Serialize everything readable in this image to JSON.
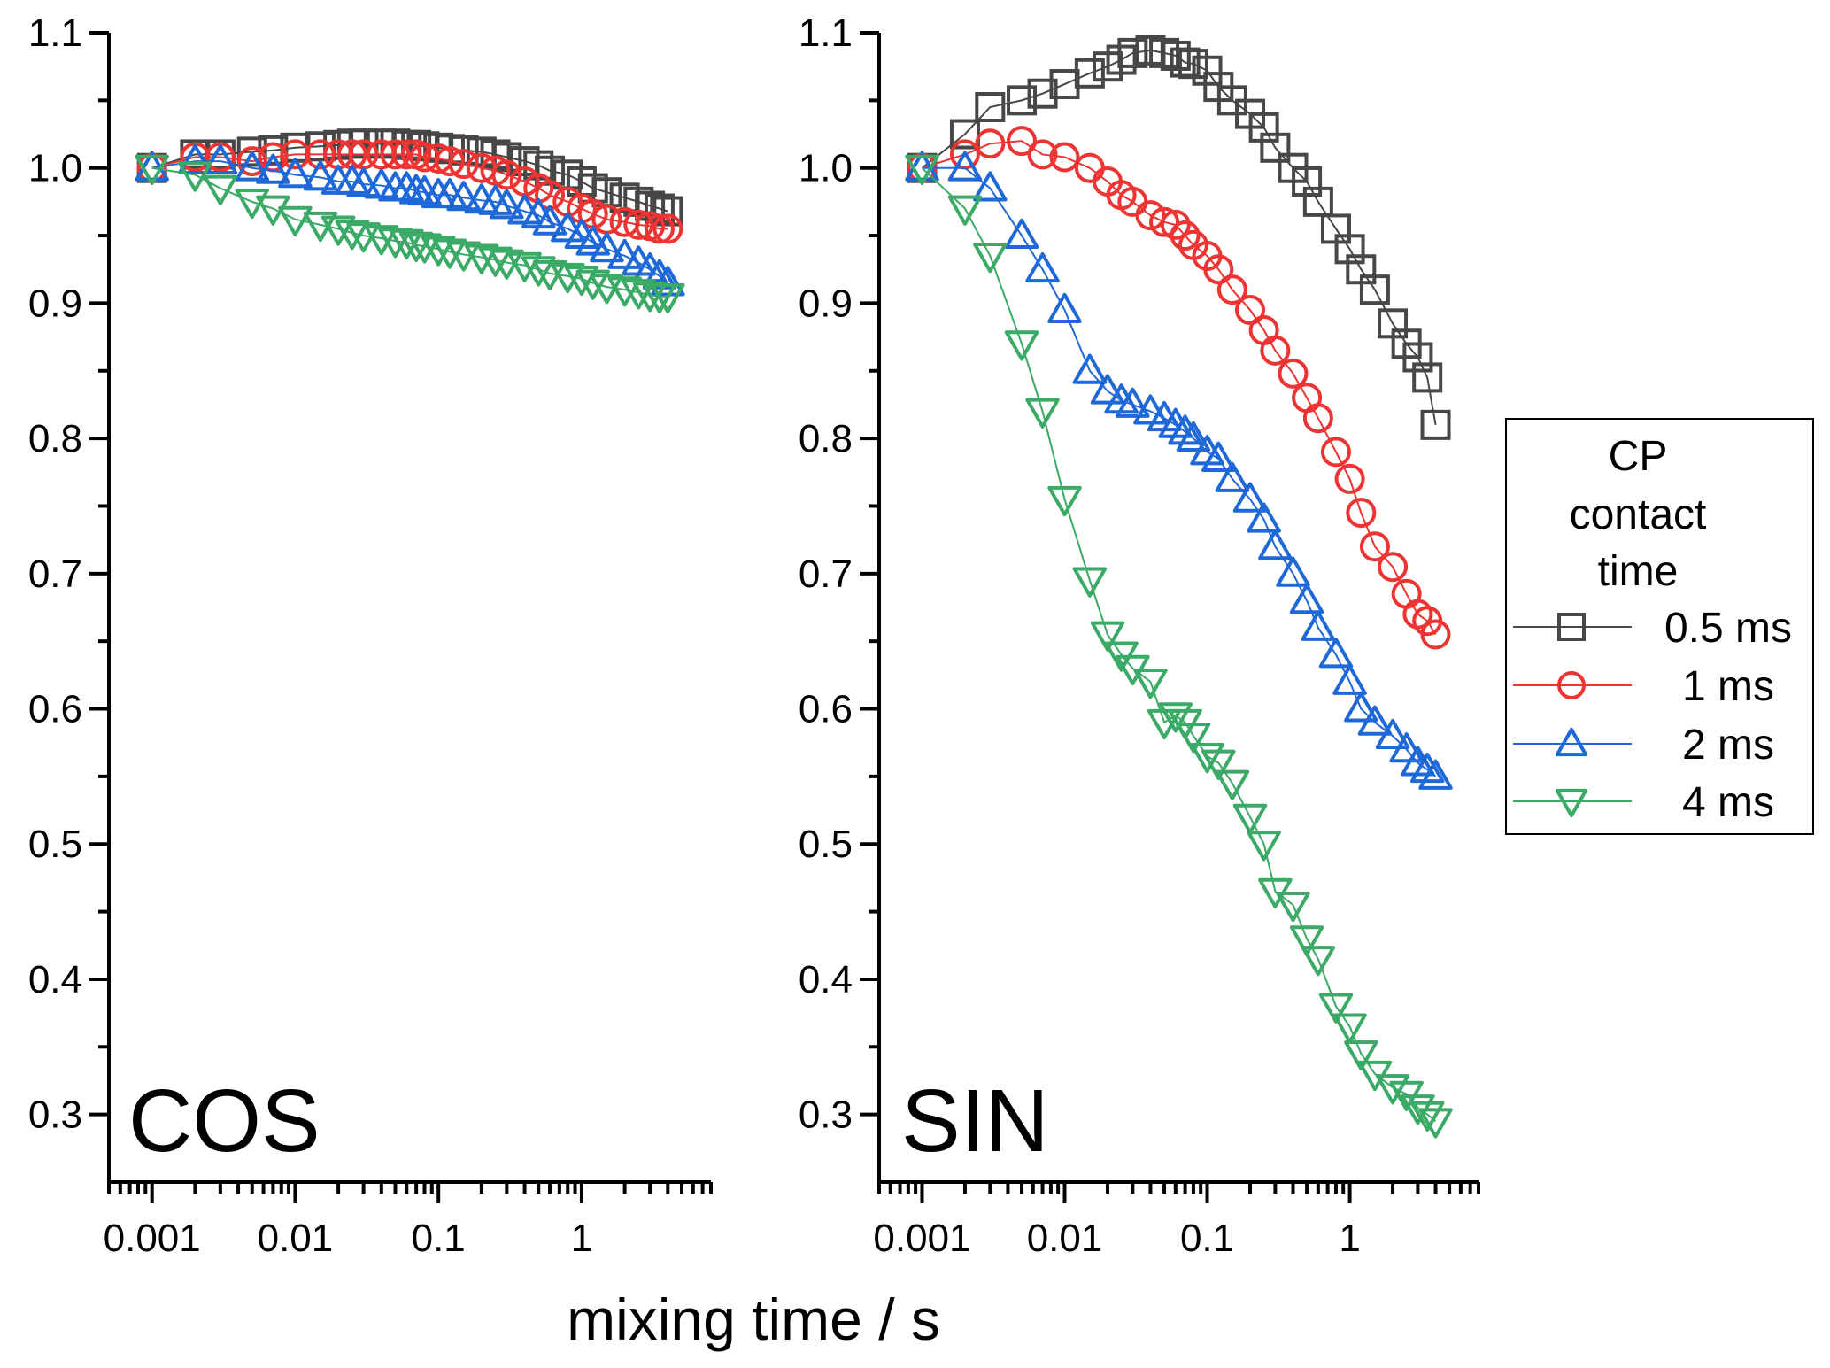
{
  "chart_data": [
    {
      "type": "scatter",
      "panel_label": "COS",
      "xscale": "log",
      "xlim": [
        0.0005,
        8
      ],
      "ylim": [
        0.25,
        1.1
      ],
      "xticks": [
        0.001,
        0.01,
        0.1,
        1
      ],
      "xtick_labels": [
        "0.001",
        "0.01",
        "0.1",
        "1"
      ],
      "yticks": [
        0.3,
        0.4,
        0.5,
        0.6,
        0.7,
        0.8,
        0.9,
        1.0,
        1.1
      ],
      "ytick_labels": [
        "0.3",
        "0.4",
        "0.5",
        "0.6",
        "0.7",
        "0.8",
        "0.9",
        "1.0",
        "1.1"
      ],
      "x": [
        0.001,
        0.002,
        0.003,
        0.005,
        0.007,
        0.01,
        0.015,
        0.02,
        0.025,
        0.03,
        0.04,
        0.05,
        0.06,
        0.07,
        0.08,
        0.1,
        0.12,
        0.15,
        0.2,
        0.25,
        0.3,
        0.4,
        0.5,
        0.6,
        0.8,
        1.0,
        1.2,
        1.5,
        2.0,
        2.5,
        3.0,
        3.5,
        4.0
      ],
      "series": [
        {
          "name": "0.5 ms",
          "values": [
            1.0,
            1.01,
            1.01,
            1.012,
            1.013,
            1.015,
            1.016,
            1.017,
            1.018,
            1.018,
            1.018,
            1.018,
            1.017,
            1.017,
            1.016,
            1.015,
            1.014,
            1.013,
            1.012,
            1.01,
            1.008,
            1.005,
            1.002,
            0.998,
            0.995,
            0.99,
            0.985,
            0.982,
            0.978,
            0.975,
            0.972,
            0.97,
            0.968
          ]
        },
        {
          "name": "1 ms",
          "values": [
            1.0,
            1.008,
            1.008,
            1.005,
            1.008,
            1.01,
            1.01,
            1.01,
            1.01,
            1.01,
            1.01,
            1.01,
            1.01,
            1.01,
            1.008,
            1.007,
            1.005,
            1.003,
            1.0,
            0.998,
            0.995,
            0.99,
            0.985,
            0.98,
            0.975,
            0.97,
            0.966,
            0.962,
            0.96,
            0.958,
            0.957,
            0.955,
            0.955
          ]
        },
        {
          "name": "2 ms",
          "values": [
            1.0,
            1.005,
            1.005,
            1.0,
            0.998,
            0.995,
            0.993,
            0.99,
            0.99,
            0.988,
            0.987,
            0.985,
            0.985,
            0.983,
            0.982,
            0.98,
            0.98,
            0.978,
            0.976,
            0.975,
            0.972,
            0.968,
            0.965,
            0.96,
            0.955,
            0.95,
            0.945,
            0.94,
            0.935,
            0.93,
            0.925,
            0.92,
            0.915
          ]
        },
        {
          "name": "4 ms",
          "values": [
            1.0,
            0.995,
            0.985,
            0.975,
            0.97,
            0.962,
            0.958,
            0.955,
            0.952,
            0.95,
            0.948,
            0.946,
            0.945,
            0.943,
            0.942,
            0.94,
            0.938,
            0.936,
            0.934,
            0.932,
            0.93,
            0.928,
            0.925,
            0.922,
            0.92,
            0.918,
            0.915,
            0.912,
            0.91,
            0.908,
            0.906,
            0.905,
            0.905
          ]
        }
      ]
    },
    {
      "type": "scatter",
      "panel_label": "SIN",
      "xscale": "log",
      "xlim": [
        0.0005,
        8
      ],
      "ylim": [
        0.25,
        1.1
      ],
      "xticks": [
        0.001,
        0.01,
        0.1,
        1
      ],
      "xtick_labels": [
        "0.001",
        "0.01",
        "0.1",
        "1"
      ],
      "yticks": [
        0.3,
        0.4,
        0.5,
        0.6,
        0.7,
        0.8,
        0.9,
        1.0,
        1.1
      ],
      "ytick_labels": [
        "0.3",
        "0.4",
        "0.5",
        "0.6",
        "0.7",
        "0.8",
        "0.9",
        "1.0",
        "1.1"
      ],
      "x": [
        0.001,
        0.002,
        0.003,
        0.005,
        0.007,
        0.01,
        0.015,
        0.02,
        0.025,
        0.03,
        0.04,
        0.05,
        0.06,
        0.07,
        0.08,
        0.1,
        0.12,
        0.15,
        0.2,
        0.25,
        0.3,
        0.4,
        0.5,
        0.6,
        0.8,
        1.0,
        1.2,
        1.5,
        2.0,
        2.5,
        3.0,
        3.5,
        4.0
      ],
      "series": [
        {
          "name": "0.5 ms",
          "values": [
            1.0,
            1.025,
            1.045,
            1.05,
            1.055,
            1.062,
            1.07,
            1.075,
            1.08,
            1.085,
            1.087,
            1.085,
            1.083,
            1.078,
            1.077,
            1.072,
            1.06,
            1.05,
            1.04,
            1.03,
            1.015,
            1.0,
            0.99,
            0.975,
            0.955,
            0.94,
            0.925,
            0.91,
            0.885,
            0.87,
            0.86,
            0.845,
            0.81
          ]
        },
        {
          "name": "1 ms",
          "values": [
            1.0,
            1.01,
            1.018,
            1.02,
            1.01,
            1.008,
            1.0,
            0.99,
            0.98,
            0.975,
            0.965,
            0.96,
            0.958,
            0.95,
            0.943,
            0.935,
            0.925,
            0.91,
            0.895,
            0.88,
            0.865,
            0.848,
            0.83,
            0.815,
            0.79,
            0.77,
            0.745,
            0.72,
            0.705,
            0.685,
            0.67,
            0.665,
            0.655
          ]
        },
        {
          "name": "2 ms",
          "values": [
            1.0,
            1.0,
            0.985,
            0.95,
            0.925,
            0.895,
            0.85,
            0.835,
            0.828,
            0.825,
            0.82,
            0.815,
            0.81,
            0.805,
            0.8,
            0.79,
            0.785,
            0.77,
            0.755,
            0.74,
            0.72,
            0.7,
            0.68,
            0.66,
            0.64,
            0.62,
            0.6,
            0.59,
            0.58,
            0.57,
            0.56,
            0.555,
            0.55
          ]
        },
        {
          "name": "4 ms",
          "values": [
            1.0,
            0.97,
            0.935,
            0.87,
            0.82,
            0.755,
            0.695,
            0.655,
            0.64,
            0.63,
            0.62,
            0.59,
            0.595,
            0.59,
            0.58,
            0.565,
            0.56,
            0.545,
            0.52,
            0.5,
            0.465,
            0.455,
            0.43,
            0.415,
            0.38,
            0.365,
            0.345,
            0.33,
            0.32,
            0.315,
            0.305,
            0.3,
            0.295
          ]
        }
      ]
    }
  ],
  "xlabel": "mixing time / s",
  "legend": {
    "title_lines": [
      "CP",
      "contact",
      "time"
    ],
    "placement": "right",
    "entries": [
      {
        "label": "0.5 ms",
        "marker": "square",
        "color": "#474747"
      },
      {
        "label": "1 ms",
        "marker": "circle",
        "color": "#EE3333"
      },
      {
        "label": "2 ms",
        "marker": "triangle-up",
        "color": "#1F68D8"
      },
      {
        "label": "4 ms",
        "marker": "triangle-down",
        "color": "#3AAA66"
      }
    ]
  }
}
